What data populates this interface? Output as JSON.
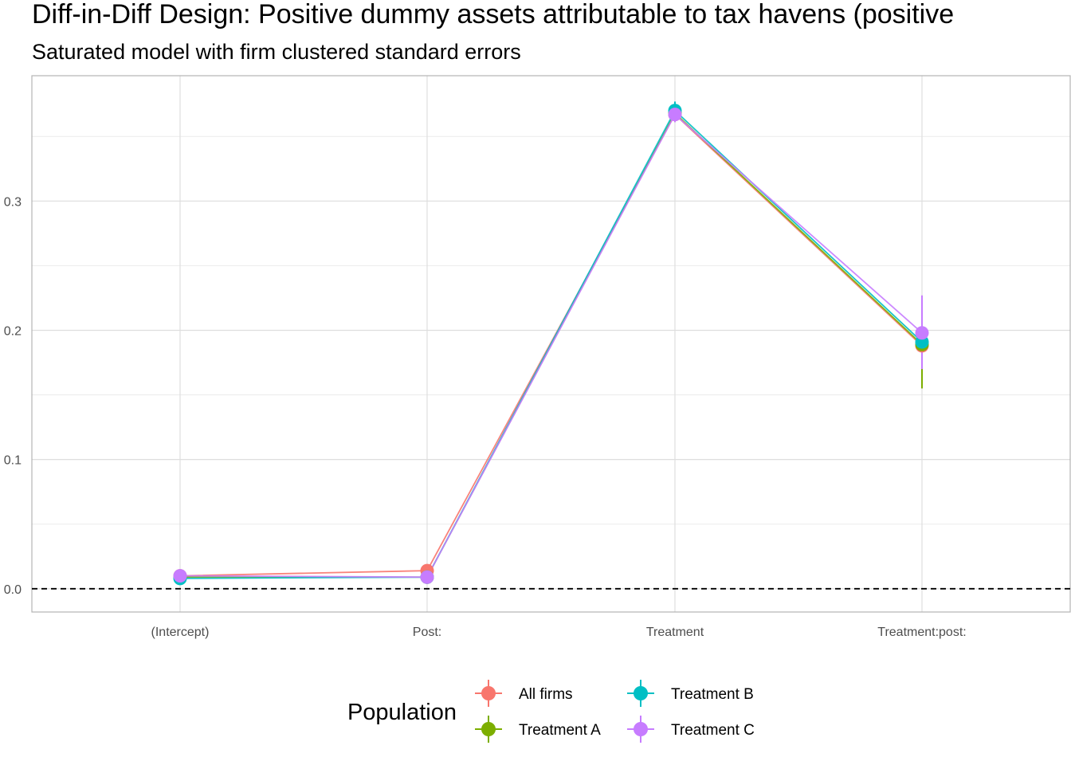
{
  "chart_data": {
    "type": "line",
    "title": "Diff-in-Diff Design: Positive dummy assets attributable to tax havens (positive",
    "subtitle": "Saturated model with firm clustered standard errors",
    "xlabel": "",
    "ylabel": "",
    "categories": [
      "(Intercept)",
      "Post:",
      "Treatment",
      "Treatment:post:"
    ],
    "ylim": [
      -0.018,
      0.397
    ],
    "y_ticks": [
      0.0,
      0.1,
      0.2,
      0.3
    ],
    "y_tick_labels": [
      "0.0",
      "0.1",
      "0.2",
      "0.3"
    ],
    "reference_line": 0,
    "grid": true,
    "legend_title": "Population",
    "legend_position": "bottom",
    "series": [
      {
        "name": "All firms",
        "color": "#F8766D",
        "values": [
          0.01,
          0.014,
          0.367,
          0.188
        ],
        "lower": [
          0.008,
          0.012,
          0.362,
          0.18
        ],
        "upper": [
          0.012,
          0.016,
          0.372,
          0.196
        ]
      },
      {
        "name": "Treatment A",
        "color": "#7CAE00",
        "values": [
          0.009,
          0.009,
          0.368,
          0.189
        ],
        "lower": [
          0.007,
          0.007,
          0.362,
          0.155
        ],
        "upper": [
          0.011,
          0.011,
          0.374,
          0.205
        ]
      },
      {
        "name": "Treatment B",
        "color": "#00BFC4",
        "values": [
          0.008,
          0.009,
          0.37,
          0.191
        ],
        "lower": [
          0.006,
          0.007,
          0.363,
          0.183
        ],
        "upper": [
          0.01,
          0.011,
          0.377,
          0.199
        ]
      },
      {
        "name": "Treatment C",
        "color": "#C77CFF",
        "values": [
          0.01,
          0.009,
          0.367,
          0.198
        ],
        "lower": [
          0.008,
          0.007,
          0.361,
          0.17
        ],
        "upper": [
          0.012,
          0.011,
          0.373,
          0.227
        ]
      }
    ]
  }
}
